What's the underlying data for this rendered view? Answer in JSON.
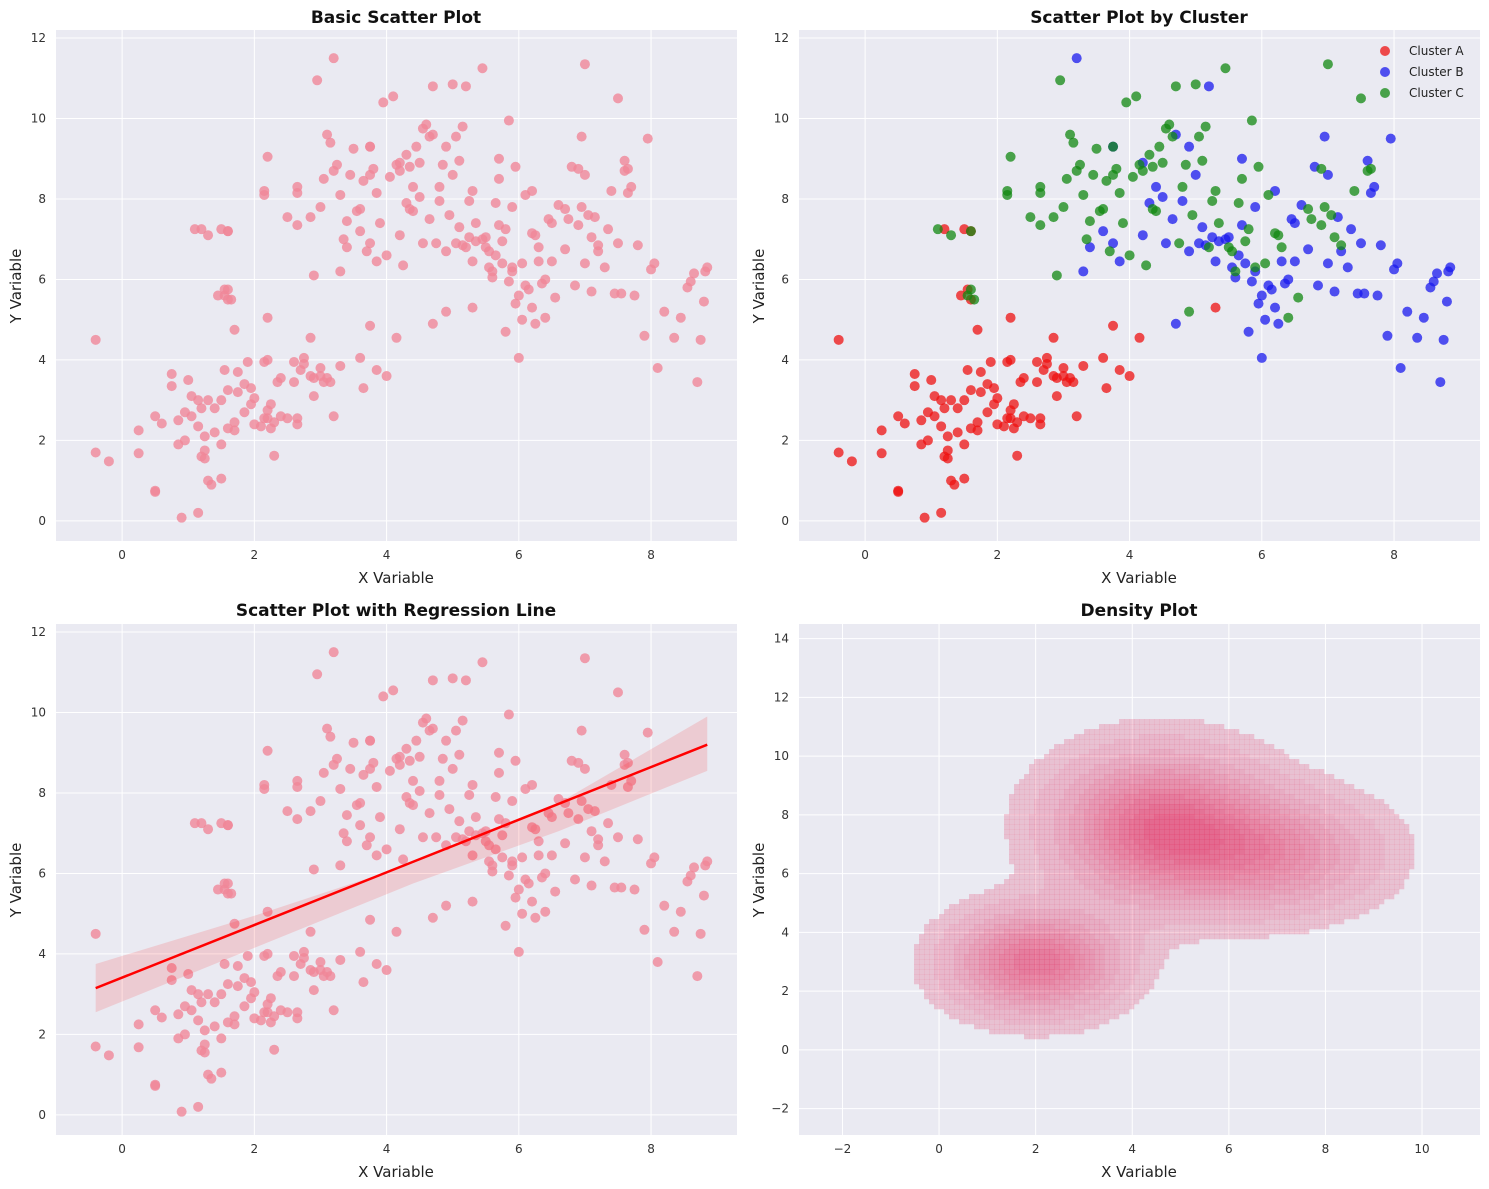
{
  "colors": {
    "panel_bg": "#eaeaf2",
    "grid": "#ffffff",
    "pink": "#f08799",
    "cluster_a": "#ee1111",
    "cluster_b": "#1a1aee",
    "cluster_c": "#118811",
    "regression": "#ff0000",
    "density": "#e23a6a"
  },
  "chart_data": [
    {
      "id": "basic",
      "type": "scatter",
      "title": "Basic Scatter Plot",
      "xlabel": "X Variable",
      "ylabel": "Y Variable",
      "xlim": [
        -1.0,
        9.3
      ],
      "ylim": [
        -0.5,
        12.2
      ],
      "xticks": [
        0,
        2,
        4,
        6,
        8
      ],
      "yticks": [
        0,
        2,
        4,
        6,
        8,
        10,
        12
      ],
      "series": [
        {
          "name": "points",
          "source": "dataset"
        }
      ]
    },
    {
      "id": "cluster",
      "type": "scatter",
      "title": "Scatter Plot by Cluster",
      "xlabel": "X Variable",
      "ylabel": "Y Variable",
      "xlim": [
        -1.0,
        9.3
      ],
      "ylim": [
        -0.5,
        12.2
      ],
      "xticks": [
        0,
        2,
        4,
        6,
        8
      ],
      "yticks": [
        0,
        2,
        4,
        6,
        8,
        10,
        12
      ],
      "legend": {
        "position": "top-right",
        "entries": [
          "Cluster A",
          "Cluster B",
          "Cluster C"
        ]
      },
      "series": [
        {
          "name": "Cluster A",
          "source": "dataset.A"
        },
        {
          "name": "Cluster B",
          "source": "dataset.B"
        },
        {
          "name": "Cluster C",
          "source": "dataset.C"
        }
      ]
    },
    {
      "id": "regression",
      "type": "scatter",
      "title": "Scatter Plot with Regression Line",
      "xlabel": "X Variable",
      "ylabel": "Y Variable",
      "xlim": [
        -1.0,
        9.3
      ],
      "ylim": [
        -0.5,
        12.2
      ],
      "xticks": [
        0,
        2,
        4,
        6,
        8
      ],
      "yticks": [
        0,
        2,
        4,
        6,
        8,
        10,
        12
      ],
      "regression_line": {
        "x": [
          -0.4,
          8.85
        ],
        "y": [
          3.15,
          9.2
        ]
      },
      "confidence_band": {
        "x": [
          -0.4,
          2.0,
          4.4,
          6.6,
          8.85
        ],
        "lower": [
          2.55,
          4.15,
          5.75,
          7.05,
          8.55
        ],
        "upper": [
          3.75,
          4.95,
          6.25,
          7.75,
          9.9
        ]
      }
    },
    {
      "id": "density",
      "type": "density",
      "title": "Density Plot",
      "xlabel": "X Variable",
      "ylabel": "Y Variable",
      "xlim": [
        -2.9,
        11.2
      ],
      "ylim": [
        -2.9,
        14.5
      ],
      "xticks": [
        -2,
        0,
        2,
        4,
        6,
        8,
        10
      ],
      "yticks": [
        -2,
        0,
        2,
        4,
        6,
        8,
        10,
        12,
        14
      ],
      "components": [
        {
          "cx": 2.0,
          "cy": 3.0,
          "sx": 1.05,
          "sy": 1.05,
          "w": 0.36
        },
        {
          "cx": 4.6,
          "cy": 7.6,
          "sx": 1.3,
          "sy": 1.5,
          "w": 0.4
        },
        {
          "cx": 6.8,
          "cy": 6.7,
          "sx": 1.35,
          "sy": 1.2,
          "w": 0.24
        }
      ]
    }
  ],
  "dataset": {
    "A": [
      [
        -0.4,
        4.5
      ],
      [
        -0.4,
        1.7
      ],
      [
        -0.2,
        1.48
      ],
      [
        0.25,
        2.25
      ],
      [
        0.25,
        1.68
      ],
      [
        0.5,
        0.75
      ],
      [
        0.5,
        0.72
      ],
      [
        0.5,
        2.6
      ],
      [
        0.6,
        2.42
      ],
      [
        0.75,
        3.65
      ],
      [
        0.75,
        3.35
      ],
      [
        0.85,
        1.9
      ],
      [
        0.85,
        2.5
      ],
      [
        0.9,
        0.08
      ],
      [
        0.95,
        2.7
      ],
      [
        0.95,
        2.0
      ],
      [
        1.0,
        3.5
      ],
      [
        1.05,
        2.6
      ],
      [
        1.05,
        3.1
      ],
      [
        1.15,
        2.35
      ],
      [
        1.15,
        0.2
      ],
      [
        1.15,
        3.0
      ],
      [
        1.2,
        2.8
      ],
      [
        1.2,
        1.6
      ],
      [
        1.25,
        1.75
      ],
      [
        1.25,
        1.55
      ],
      [
        1.25,
        2.1
      ],
      [
        1.3,
        1.0
      ],
      [
        1.3,
        3.0
      ],
      [
        1.35,
        0.9
      ],
      [
        1.4,
        2.2
      ],
      [
        1.4,
        2.8
      ],
      [
        1.5,
        3.0
      ],
      [
        1.5,
        1.05
      ],
      [
        1.5,
        1.9
      ],
      [
        1.55,
        3.75
      ],
      [
        1.6,
        3.25
      ],
      [
        1.6,
        2.3
      ],
      [
        1.7,
        2.25
      ],
      [
        1.7,
        2.45
      ],
      [
        1.7,
        4.75
      ],
      [
        1.75,
        3.2
      ],
      [
        1.75,
        3.7
      ],
      [
        1.85,
        2.7
      ],
      [
        1.85,
        3.4
      ],
      [
        1.9,
        3.95
      ],
      [
        1.95,
        2.9
      ],
      [
        1.95,
        3.3
      ],
      [
        2.0,
        3.05
      ],
      [
        2.0,
        2.4
      ],
      [
        2.1,
        2.35
      ],
      [
        2.15,
        2.55
      ],
      [
        2.15,
        3.95
      ],
      [
        2.2,
        2.55
      ],
      [
        2.2,
        2.75
      ],
      [
        2.2,
        4.0
      ],
      [
        2.25,
        2.3
      ],
      [
        2.25,
        2.9
      ],
      [
        2.3,
        1.62
      ],
      [
        2.3,
        2.45
      ],
      [
        2.35,
        3.45
      ],
      [
        2.4,
        2.6
      ],
      [
        2.4,
        3.55
      ],
      [
        2.5,
        2.55
      ],
      [
        2.6,
        3.95
      ],
      [
        2.6,
        3.45
      ],
      [
        2.65,
        2.55
      ],
      [
        2.65,
        2.4
      ],
      [
        2.7,
        3.75
      ],
      [
        2.75,
        3.9
      ],
      [
        2.75,
        4.05
      ],
      [
        2.85,
        3.6
      ],
      [
        2.9,
        3.1
      ],
      [
        2.9,
        3.55
      ],
      [
        3.0,
        3.6
      ],
      [
        3.0,
        3.8
      ],
      [
        3.05,
        3.45
      ],
      [
        3.1,
        3.55
      ],
      [
        3.15,
        3.45
      ],
      [
        3.2,
        2.6
      ],
      [
        2.2,
        5.05
      ],
      [
        1.45,
        5.6
      ],
      [
        1.55,
        5.75
      ],
      [
        1.6,
        5.5
      ],
      [
        1.5,
        7.25
      ],
      [
        1.2,
        7.25
      ],
      [
        1.6,
        7.2
      ],
      [
        3.6,
        4.05
      ],
      [
        3.75,
        4.85
      ],
      [
        3.85,
        3.75
      ],
      [
        3.65,
        3.3
      ],
      [
        4.0,
        3.6
      ],
      [
        4.15,
        4.55
      ],
      [
        5.3,
        5.3
      ],
      [
        2.85,
        4.55
      ],
      [
        3.3,
        3.85
      ]
    ],
    "B": [
      [
        3.3,
        6.2
      ],
      [
        3.4,
        6.8
      ],
      [
        3.6,
        7.2
      ],
      [
        3.75,
        6.9
      ],
      [
        3.85,
        6.45
      ],
      [
        4.2,
        7.1
      ],
      [
        4.3,
        7.9
      ],
      [
        4.4,
        8.3
      ],
      [
        4.5,
        8.05
      ],
      [
        4.55,
        6.9
      ],
      [
        4.65,
        7.5
      ],
      [
        4.7,
        4.9
      ],
      [
        4.8,
        7.95
      ],
      [
        4.9,
        6.7
      ],
      [
        5.0,
        8.6
      ],
      [
        5.05,
        6.9
      ],
      [
        5.1,
        7.3
      ],
      [
        5.15,
        6.85
      ],
      [
        5.2,
        10.8
      ],
      [
        5.25,
        7.05
      ],
      [
        5.3,
        6.45
      ],
      [
        5.35,
        6.95
      ],
      [
        5.45,
        7.0
      ],
      [
        5.5,
        7.05
      ],
      [
        5.55,
        6.3
      ],
      [
        5.6,
        6.05
      ],
      [
        5.65,
        6.6
      ],
      [
        5.7,
        7.35
      ],
      [
        5.75,
        6.4
      ],
      [
        5.8,
        4.7
      ],
      [
        5.85,
        5.95
      ],
      [
        5.9,
        6.2
      ],
      [
        5.9,
        7.8
      ],
      [
        5.95,
        5.4
      ],
      [
        6.0,
        5.6
      ],
      [
        6.0,
        4.05
      ],
      [
        6.05,
        5.0
      ],
      [
        6.1,
        5.85
      ],
      [
        6.15,
        5.75
      ],
      [
        6.2,
        5.3
      ],
      [
        6.25,
        4.9
      ],
      [
        6.3,
        6.45
      ],
      [
        6.35,
        5.9
      ],
      [
        6.45,
        7.5
      ],
      [
        6.5,
        7.4
      ],
      [
        6.6,
        7.85
      ],
      [
        6.7,
        6.75
      ],
      [
        6.8,
        8.8
      ],
      [
        6.85,
        5.85
      ],
      [
        6.95,
        9.55
      ],
      [
        7.0,
        8.6
      ],
      [
        7.1,
        5.7
      ],
      [
        7.15,
        7.55
      ],
      [
        7.2,
        6.7
      ],
      [
        7.3,
        6.3
      ],
      [
        7.35,
        7.25
      ],
      [
        7.45,
        5.65
      ],
      [
        7.5,
        6.9
      ],
      [
        7.55,
        5.65
      ],
      [
        7.6,
        8.95
      ],
      [
        7.65,
        8.15
      ],
      [
        7.7,
        8.3
      ],
      [
        7.75,
        5.6
      ],
      [
        7.8,
        6.85
      ],
      [
        7.9,
        4.6
      ],
      [
        7.95,
        9.5
      ],
      [
        8.0,
        6.25
      ],
      [
        8.05,
        6.4
      ],
      [
        8.1,
        3.8
      ],
      [
        8.2,
        5.2
      ],
      [
        8.35,
        4.55
      ],
      [
        8.45,
        5.05
      ],
      [
        8.55,
        5.8
      ],
      [
        8.6,
        5.95
      ],
      [
        8.65,
        6.15
      ],
      [
        8.7,
        3.45
      ],
      [
        8.75,
        4.5
      ],
      [
        8.8,
        5.45
      ],
      [
        8.82,
        6.2
      ],
      [
        8.85,
        6.3
      ],
      [
        6.2,
        8.2
      ],
      [
        5.7,
        9.0
      ],
      [
        4.9,
        9.3
      ],
      [
        3.75,
        9.3
      ],
      [
        4.2,
        8.9
      ],
      [
        4.7,
        9.6
      ],
      [
        3.2,
        11.5
      ],
      [
        6.5,
        6.45
      ],
      [
        6.4,
        6.0
      ],
      [
        7.0,
        6.4
      ]
    ],
    "C": [
      [
        1.1,
        7.25
      ],
      [
        1.3,
        7.1
      ],
      [
        1.6,
        7.2
      ],
      [
        1.55,
        5.6
      ],
      [
        1.6,
        5.75
      ],
      [
        1.65,
        5.5
      ],
      [
        2.15,
        8.2
      ],
      [
        2.15,
        8.1
      ],
      [
        2.2,
        9.05
      ],
      [
        2.5,
        7.55
      ],
      [
        2.65,
        8.3
      ],
      [
        2.65,
        8.15
      ],
      [
        2.65,
        7.35
      ],
      [
        2.85,
        7.55
      ],
      [
        2.9,
        6.1
      ],
      [
        2.95,
        10.95
      ],
      [
        3.0,
        7.8
      ],
      [
        3.05,
        8.5
      ],
      [
        3.1,
        9.6
      ],
      [
        3.15,
        9.4
      ],
      [
        3.2,
        8.7
      ],
      [
        3.25,
        8.85
      ],
      [
        3.3,
        8.1
      ],
      [
        3.35,
        7.0
      ],
      [
        3.4,
        7.45
      ],
      [
        3.45,
        8.6
      ],
      [
        3.5,
        9.25
      ],
      [
        3.55,
        7.7
      ],
      [
        3.6,
        7.75
      ],
      [
        3.65,
        8.45
      ],
      [
        3.7,
        6.7
      ],
      [
        3.75,
        8.6
      ],
      [
        3.8,
        8.75
      ],
      [
        3.85,
        8.15
      ],
      [
        3.9,
        7.4
      ],
      [
        3.95,
        10.4
      ],
      [
        4.0,
        6.6
      ],
      [
        4.05,
        8.55
      ],
      [
        4.1,
        10.55
      ],
      [
        4.15,
        8.85
      ],
      [
        4.2,
        8.7
      ],
      [
        4.25,
        6.35
      ],
      [
        4.3,
        9.1
      ],
      [
        4.35,
        7.75
      ],
      [
        4.4,
        7.7
      ],
      [
        4.45,
        9.3
      ],
      [
        4.5,
        8.9
      ],
      [
        4.55,
        9.75
      ],
      [
        4.6,
        9.85
      ],
      [
        4.65,
        9.55
      ],
      [
        4.7,
        10.8
      ],
      [
        4.75,
        6.9
      ],
      [
        4.8,
        8.3
      ],
      [
        4.85,
        8.85
      ],
      [
        4.9,
        5.2
      ],
      [
        4.95,
        7.6
      ],
      [
        5.0,
        10.85
      ],
      [
        5.05,
        9.55
      ],
      [
        5.1,
        8.95
      ],
      [
        5.15,
        9.8
      ],
      [
        5.2,
        6.8
      ],
      [
        5.25,
        7.95
      ],
      [
        5.3,
        8.2
      ],
      [
        5.35,
        7.4
      ],
      [
        5.45,
        11.25
      ],
      [
        5.5,
        6.8
      ],
      [
        5.55,
        6.7
      ],
      [
        5.6,
        6.2
      ],
      [
        5.65,
        7.9
      ],
      [
        5.7,
        8.5
      ],
      [
        5.75,
        6.95
      ],
      [
        5.8,
        7.25
      ],
      [
        5.85,
        9.95
      ],
      [
        5.9,
        6.3
      ],
      [
        5.95,
        8.8
      ],
      [
        6.05,
        6.4
      ],
      [
        6.1,
        8.1
      ],
      [
        6.2,
        7.15
      ],
      [
        6.25,
        7.1
      ],
      [
        6.3,
        6.8
      ],
      [
        6.4,
        5.05
      ],
      [
        6.55,
        5.55
      ],
      [
        6.7,
        7.75
      ],
      [
        6.75,
        7.5
      ],
      [
        6.9,
        8.75
      ],
      [
        6.95,
        7.8
      ],
      [
        7.0,
        11.35
      ],
      [
        7.05,
        7.6
      ],
      [
        7.1,
        7.05
      ],
      [
        7.2,
        6.85
      ],
      [
        7.4,
        8.2
      ],
      [
        7.5,
        10.5
      ],
      [
        7.6,
        8.7
      ],
      [
        7.65,
        8.75
      ],
      [
        6.9,
        7.35
      ],
      [
        4.35,
        8.8
      ],
      [
        3.75,
        9.3
      ]
    ]
  }
}
